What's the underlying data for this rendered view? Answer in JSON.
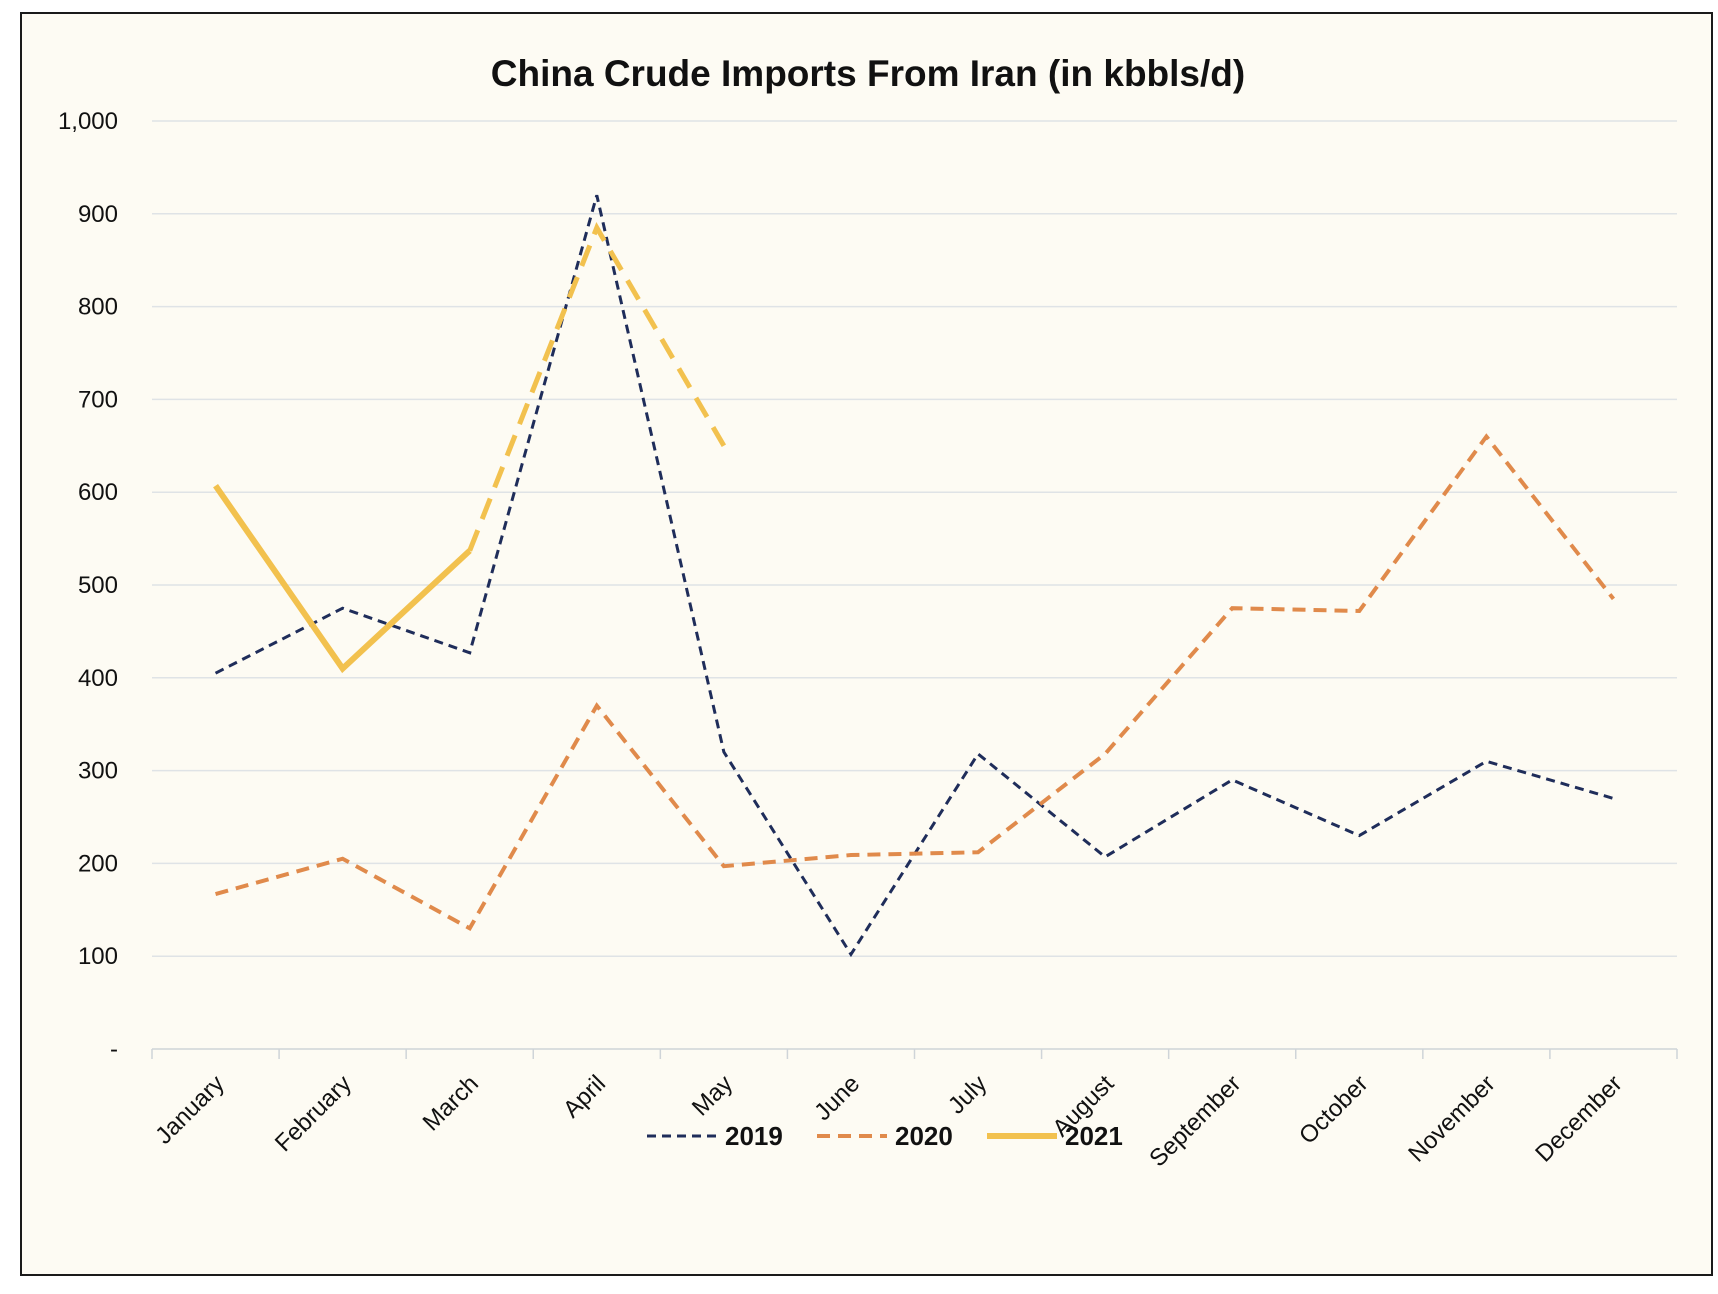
{
  "chart_data": {
    "type": "line",
    "title": "China Crude Imports From Iran (in kbbls/d)",
    "xlabel": "",
    "ylabel": "",
    "ylim": [
      0,
      1000
    ],
    "yticks": [
      0,
      100,
      200,
      300,
      400,
      500,
      600,
      700,
      800,
      900,
      1000
    ],
    "ytick_labels": [
      "-",
      "100",
      "200",
      "300",
      "400",
      "500",
      "600",
      "700",
      "800",
      "900",
      "1,000"
    ],
    "categories": [
      "January",
      "February",
      "March",
      "April",
      "May",
      "June",
      "July",
      "August",
      "September",
      "October",
      "November",
      "December"
    ],
    "grid": "horizontal",
    "legend_position": "bottom",
    "series": [
      {
        "name": "2019",
        "color": "#1f2d5a",
        "style": "dashed-thin",
        "values": [
          405,
          475,
          427,
          920,
          320,
          102,
          318,
          207,
          290,
          230,
          310,
          270
        ]
      },
      {
        "name": "2020",
        "color": "#e08a4b",
        "style": "dashed-medium",
        "values": [
          167,
          205,
          130,
          370,
          197,
          209,
          212,
          318,
          475,
          472,
          660,
          485
        ]
      },
      {
        "name": "2021",
        "color": "#f2c14e",
        "style": "solid-thick",
        "values": [
          607,
          410,
          537,
          885,
          650,
          null,
          null,
          null,
          null,
          null,
          null,
          null
        ],
        "estimated_from_index": 2
      }
    ]
  }
}
